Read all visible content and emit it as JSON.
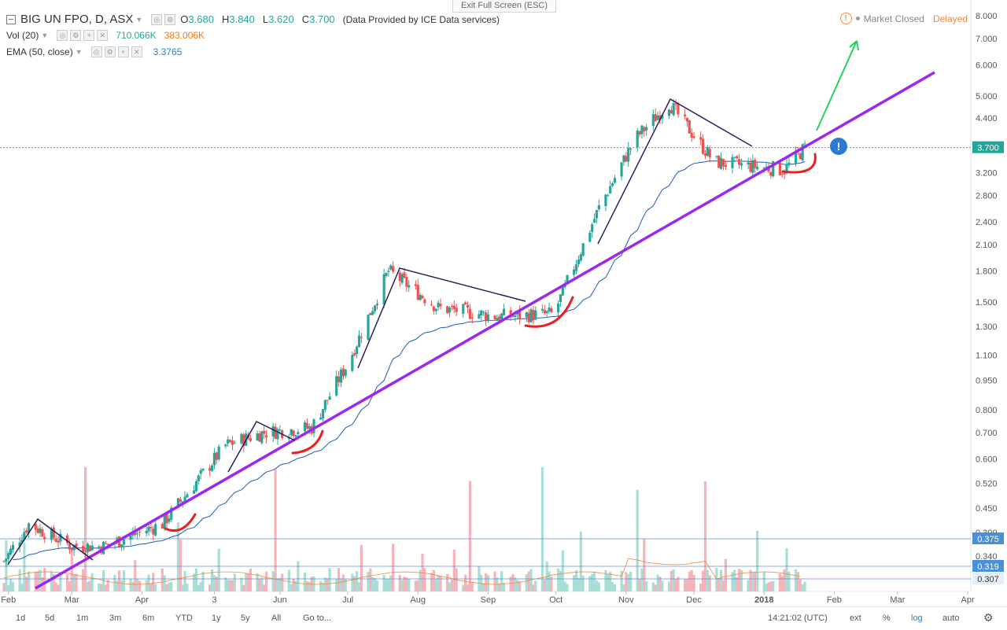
{
  "toolbar": {
    "exit_fullscreen": "Exit Full Screen (ESC)"
  },
  "legend": {
    "symbol": "BIG UN FPO, D, ASX",
    "o_label": "O",
    "o_value": "3.680",
    "h_label": "H",
    "h_value": "3.840",
    "l_label": "L",
    "l_value": "3.620",
    "c_label": "C",
    "c_value": "3.700",
    "source": "(Data Provided by ICE Data services)",
    "vol_label": "Vol (20)",
    "vol_value1": "710.066K",
    "vol_value2": "383.006K",
    "ema_label": "EMA (50, close)",
    "ema_value": "3.3765"
  },
  "status": {
    "market": "Market Closed",
    "delay": "Delayed"
  },
  "colors": {
    "up": "#26a69a",
    "down": "#ef5350",
    "up_vol": "#a8ded7",
    "down_vol": "#f5b3bb",
    "trend": "#9c27ef",
    "ema": "#1e5bb8",
    "triangle": "#2a1f5e",
    "arrow": "#22d15e",
    "cup": "#e82020",
    "price_badge": "#26a69a",
    "level_badge": "#4a90d9"
  },
  "chart_data": {
    "type": "candlestick",
    "title": "BIG UN FPO, D, ASX",
    "y_scale": "log",
    "ylim": [
      0.28,
      8.3
    ],
    "y_ticks": [
      "8.000",
      "7.000",
      "6.000",
      "5.000",
      "4.400",
      "3.700",
      "3.200",
      "2.800",
      "2.400",
      "2.100",
      "1.800",
      "1.500",
      "1.300",
      "1.100",
      "0.950",
      "0.800",
      "0.700",
      "0.600",
      "0.520",
      "0.450",
      "0.390",
      "0.340",
      "0.307"
    ],
    "x_labels": [
      "Feb",
      "Mar",
      "Apr",
      "3",
      "Jun",
      "Jul",
      "Aug",
      "Sep",
      "Oct",
      "Nov",
      "Dec",
      "2018",
      "Feb",
      "Mar",
      "Apr"
    ],
    "last_price": "3.700",
    "price_levels": [
      "0.375",
      "0.319",
      "0.307"
    ],
    "key_prices": [
      {
        "date": "Jan 30",
        "price": 0.33
      },
      {
        "date": "Feb 10",
        "price": 0.41
      },
      {
        "date": "Mar 01",
        "price": 0.36
      },
      {
        "date": "Mar 15",
        "price": 0.36
      },
      {
        "date": "Apr 10",
        "price": 0.41
      },
      {
        "date": "May 08",
        "price": 0.65
      },
      {
        "date": "May 25",
        "price": 0.7
      },
      {
        "date": "Jun 15",
        "price": 0.72
      },
      {
        "date": "Jul 01",
        "price": 1.05
      },
      {
        "date": "Jul 19",
        "price": 1.8
      },
      {
        "date": "Aug 10",
        "price": 1.45
      },
      {
        "date": "Sep 05",
        "price": 1.38
      },
      {
        "date": "Sep 30",
        "price": 1.4
      },
      {
        "date": "Oct 20",
        "price": 2.6
      },
      {
        "date": "Nov 05",
        "price": 3.9
      },
      {
        "date": "Nov 20",
        "price": 4.8
      },
      {
        "date": "Dec 10",
        "price": 3.4
      },
      {
        "date": "Jan 10",
        "price": 3.25
      },
      {
        "date": "Jan 19",
        "price": 3.7
      }
    ],
    "ema_50_last": 3.3765,
    "volume_last": "710.066K",
    "volume_avg": "383.006K"
  },
  "bottom": {
    "ranges": [
      "1d",
      "5d",
      "1m",
      "3m",
      "6m",
      "YTD",
      "1y",
      "5y",
      "All"
    ],
    "goto": "Go to...",
    "time": "14:21:02 (UTC)",
    "ext": "ext",
    "pct": "%",
    "log": "log",
    "auto": "auto"
  }
}
